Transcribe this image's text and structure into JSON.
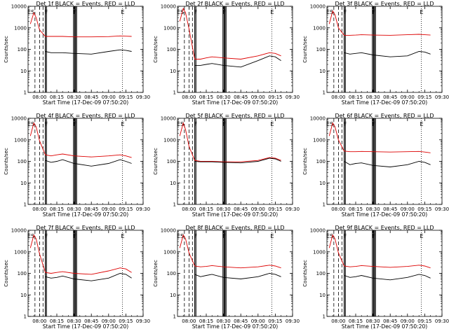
{
  "chart_data": [
    {
      "type": "line",
      "title": "Det 1f BLACK = Events, RED = LLD",
      "ylabel": "Counts/sec",
      "xlabel": "Start Time (17-Dec-09 07:50:20)",
      "yscale": "log",
      "ylim": [
        1,
        10000
      ],
      "y_ticks": [
        "1",
        "10",
        "100",
        "1000",
        "10000"
      ],
      "x_ticks": [
        "08:00",
        "08:15",
        "08:30",
        "08:45",
        "09:00",
        "09:15",
        "09:30"
      ],
      "marker_labels": [
        "ES",
        "F",
        "F",
        "E"
      ],
      "x": [
        "07:52",
        "07:55",
        "07:57",
        "08:00",
        "08:05",
        "08:10",
        "08:15",
        "08:20",
        "08:30",
        "08:45",
        "09:00",
        "09:10",
        "09:15",
        "09:20"
      ],
      "series": [
        {
          "name": "LLD",
          "color": "#dd0000",
          "values": [
            1500,
            5000,
            3000,
            800,
            400,
            400,
            400,
            400,
            380,
            380,
            390,
            420,
            410,
            400
          ]
        },
        {
          "name": "Events",
          "color": "#000000",
          "values": [
            null,
            null,
            null,
            null,
            80,
            70,
            70,
            70,
            65,
            60,
            80,
            95,
            90,
            80
          ]
        }
      ]
    },
    {
      "type": "line",
      "title": "Det 2f BLACK = Events, RED = LLD",
      "ylabel": "Counts/sec",
      "xlabel": "Start Time (17-Dec-09 07:50:20)",
      "yscale": "log",
      "ylim": [
        1,
        10000
      ],
      "y_ticks": [
        "1",
        "10",
        "100",
        "1000",
        "10000"
      ],
      "x_ticks": [
        "08:00",
        "08:15",
        "08:30",
        "08:45",
        "09:00",
        "09:15",
        "09:30"
      ],
      "marker_labels": [
        "ES",
        "F",
        "F",
        "E"
      ],
      "x": [
        "07:52",
        "07:55",
        "07:57",
        "08:00",
        "08:05",
        "08:10",
        "08:15",
        "08:20",
        "08:30",
        "08:45",
        "09:00",
        "09:10",
        "09:15",
        "09:20"
      ],
      "series": [
        {
          "name": "LLD",
          "color": "#dd0000",
          "values": [
            2000,
            8000,
            5000,
            900,
            35,
            35,
            40,
            45,
            40,
            35,
            50,
            70,
            65,
            50
          ]
        },
        {
          "name": "Events",
          "color": "#000000",
          "values": [
            null,
            null,
            null,
            null,
            18,
            18,
            20,
            22,
            18,
            15,
            30,
            50,
            45,
            30
          ]
        }
      ]
    },
    {
      "type": "line",
      "title": "Det 3f BLACK = Events, RED = LLD",
      "ylabel": "Counts/sec",
      "xlabel": "Start Time (17-Dec-09 07:50:20)",
      "yscale": "log",
      "ylim": [
        1,
        10000
      ],
      "y_ticks": [
        "1",
        "10",
        "100",
        "1000",
        "10000"
      ],
      "x_ticks": [
        "08:00",
        "08:15",
        "08:30",
        "08:45",
        "09:00",
        "09:15",
        "09:30"
      ],
      "marker_labels": [
        "ES",
        "F",
        "F",
        "E"
      ],
      "x": [
        "07:52",
        "07:55",
        "07:57",
        "08:00",
        "08:05",
        "08:10",
        "08:15",
        "08:20",
        "08:30",
        "08:45",
        "09:00",
        "09:10",
        "09:15",
        "09:20"
      ],
      "series": [
        {
          "name": "LLD",
          "color": "#dd0000",
          "values": [
            1500,
            6000,
            4000,
            1000,
            450,
            450,
            460,
            480,
            460,
            450,
            480,
            500,
            480,
            460
          ]
        },
        {
          "name": "Events",
          "color": "#000000",
          "values": [
            null,
            null,
            null,
            null,
            70,
            60,
            65,
            70,
            55,
            45,
            50,
            80,
            75,
            60
          ]
        }
      ]
    },
    {
      "type": "line",
      "title": "Det 4f BLACK = Events, RED = LLD",
      "ylabel": "Counts/sec",
      "xlabel": "Start Time (17-Dec-09 07:50:20)",
      "yscale": "log",
      "ylim": [
        1,
        10000
      ],
      "y_ticks": [
        "1",
        "10",
        "100",
        "1000",
        "10000"
      ],
      "x_ticks": [
        "08:00",
        "08:15",
        "08:30",
        "08:45",
        "09:00",
        "09:15",
        "09:30"
      ],
      "marker_labels": [
        "ES",
        "F",
        "F",
        "E"
      ],
      "x": [
        "07:52",
        "07:55",
        "07:57",
        "08:00",
        "08:05",
        "08:10",
        "08:15",
        "08:20",
        "08:30",
        "08:45",
        "09:00",
        "09:10",
        "09:15",
        "09:20"
      ],
      "series": [
        {
          "name": "LLD",
          "color": "#dd0000",
          "values": [
            1500,
            6000,
            4000,
            900,
            200,
            180,
            200,
            220,
            180,
            160,
            180,
            200,
            180,
            150
          ]
        },
        {
          "name": "Events",
          "color": "#000000",
          "values": [
            null,
            null,
            null,
            null,
            110,
            90,
            100,
            120,
            80,
            60,
            80,
            120,
            100,
            80
          ]
        }
      ]
    },
    {
      "type": "line",
      "title": "Det 5f BLACK = Events, RED = LLD",
      "ylabel": "Counts/sec",
      "xlabel": "Start Time (17-Dec-09 07:50:20)",
      "yscale": "log",
      "ylim": [
        1,
        10000
      ],
      "y_ticks": [
        "1",
        "10",
        "100",
        "1000",
        "10000"
      ],
      "x_ticks": [
        "08:00",
        "08:15",
        "08:30",
        "08:45",
        "09:00",
        "09:15",
        "09:30"
      ],
      "marker_labels": [
        "ES",
        "F",
        "F",
        "E"
      ],
      "x": [
        "07:52",
        "07:55",
        "07:57",
        "08:00",
        "08:05",
        "08:10",
        "08:15",
        "08:20",
        "08:30",
        "08:45",
        "09:00",
        "09:10",
        "09:15",
        "09:20"
      ],
      "series": [
        {
          "name": "LLD",
          "color": "#dd0000",
          "values": [
            1500,
            6000,
            3000,
            500,
            110,
            100,
            100,
            100,
            95,
            95,
            110,
            150,
            140,
            110
          ]
        },
        {
          "name": "Events",
          "color": "#000000",
          "values": [
            null,
            null,
            null,
            null,
            100,
            95,
            95,
            95,
            90,
            85,
            100,
            140,
            130,
            100
          ]
        }
      ]
    },
    {
      "type": "line",
      "title": "Det 6f BLACK = Events, RED = LLD",
      "ylabel": "Counts/sec",
      "xlabel": "Start Time (17-Dec-09 07:50:20)",
      "yscale": "log",
      "ylim": [
        1,
        10000
      ],
      "y_ticks": [
        "1",
        "10",
        "100",
        "1000",
        "10000"
      ],
      "x_ticks": [
        "08:00",
        "08:15",
        "08:30",
        "08:45",
        "09:00",
        "09:15",
        "09:30"
      ],
      "marker_labels": [
        "ES",
        "F",
        "F",
        "E"
      ],
      "x": [
        "07:52",
        "07:55",
        "07:57",
        "08:00",
        "08:05",
        "08:10",
        "08:15",
        "08:20",
        "08:30",
        "08:45",
        "09:00",
        "09:10",
        "09:15",
        "09:20"
      ],
      "series": [
        {
          "name": "LLD",
          "color": "#dd0000",
          "values": [
            1500,
            6000,
            4000,
            1000,
            300,
            280,
            280,
            290,
            280,
            270,
            280,
            290,
            270,
            250
          ]
        },
        {
          "name": "Events",
          "color": "#000000",
          "values": [
            null,
            null,
            null,
            null,
            100,
            70,
            80,
            85,
            65,
            55,
            70,
            100,
            90,
            70
          ]
        }
      ]
    },
    {
      "type": "line",
      "title": "Det 7f BLACK = Events, RED = LLD",
      "ylabel": "Counts/sec",
      "xlabel": "Start Time (17-Dec-09 07:50:20)",
      "yscale": "log",
      "ylim": [
        1,
        10000
      ],
      "y_ticks": [
        "1",
        "10",
        "100",
        "1000",
        "10000"
      ],
      "x_ticks": [
        "08:00",
        "08:15",
        "08:30",
        "08:45",
        "09:00",
        "09:15",
        "09:30"
      ],
      "marker_labels": [
        "ES",
        "F",
        "F",
        "E"
      ],
      "x": [
        "07:52",
        "07:55",
        "07:57",
        "08:00",
        "08:05",
        "08:10",
        "08:15",
        "08:20",
        "08:30",
        "08:45",
        "09:00",
        "09:10",
        "09:15",
        "09:20"
      ],
      "series": [
        {
          "name": "LLD",
          "color": "#dd0000",
          "values": [
            1500,
            6000,
            4000,
            800,
            110,
            100,
            110,
            120,
            100,
            90,
            130,
            180,
            160,
            110
          ]
        },
        {
          "name": "Events",
          "color": "#000000",
          "values": [
            null,
            null,
            null,
            null,
            70,
            60,
            65,
            75,
            55,
            45,
            60,
            100,
            90,
            60
          ]
        }
      ]
    },
    {
      "type": "line",
      "title": "Det 8f BLACK = Events, RED = LLD",
      "ylabel": "Counts/sec",
      "xlabel": "Start Time (17-Dec-09 07:50:20)",
      "yscale": "log",
      "ylim": [
        1,
        10000
      ],
      "y_ticks": [
        "1",
        "10",
        "100",
        "1000",
        "10000"
      ],
      "x_ticks": [
        "08:00",
        "08:15",
        "08:30",
        "08:45",
        "09:00",
        "09:15",
        "09:30"
      ],
      "marker_labels": [
        "ES",
        "F",
        "F",
        "E"
      ],
      "x": [
        "07:52",
        "07:55",
        "07:57",
        "08:00",
        "08:05",
        "08:10",
        "08:15",
        "08:20",
        "08:30",
        "08:45",
        "09:00",
        "09:10",
        "09:15",
        "09:20"
      ],
      "series": [
        {
          "name": "LLD",
          "color": "#dd0000",
          "values": [
            1500,
            6000,
            4000,
            900,
            220,
            200,
            210,
            230,
            200,
            180,
            200,
            240,
            220,
            180
          ]
        },
        {
          "name": "Events",
          "color": "#000000",
          "values": [
            null,
            null,
            null,
            null,
            90,
            70,
            80,
            90,
            65,
            55,
            70,
            100,
            90,
            70
          ]
        }
      ]
    },
    {
      "type": "line",
      "title": "Det 9f BLACK = Events, RED = LLD",
      "ylabel": "Counts/sec",
      "xlabel": "Start Time (17-Dec-09 07:50:20)",
      "yscale": "log",
      "ylim": [
        1,
        10000
      ],
      "y_ticks": [
        "1",
        "10",
        "100",
        "1000",
        "10000"
      ],
      "x_ticks": [
        "08:00",
        "08:15",
        "08:30",
        "08:45",
        "09:00",
        "09:15",
        "09:30"
      ],
      "marker_labels": [
        "ES",
        "F",
        "F",
        "E"
      ],
      "x": [
        "07:52",
        "07:55",
        "07:57",
        "08:00",
        "08:05",
        "08:10",
        "08:15",
        "08:20",
        "08:30",
        "08:45",
        "09:00",
        "09:10",
        "09:15",
        "09:20"
      ],
      "series": [
        {
          "name": "LLD",
          "color": "#dd0000",
          "values": [
            1500,
            6000,
            4000,
            900,
            220,
            200,
            210,
            230,
            210,
            190,
            210,
            240,
            220,
            180
          ]
        },
        {
          "name": "Events",
          "color": "#000000",
          "values": [
            null,
            null,
            null,
            null,
            80,
            65,
            70,
            80,
            60,
            50,
            65,
            90,
            80,
            60
          ]
        }
      ]
    }
  ]
}
